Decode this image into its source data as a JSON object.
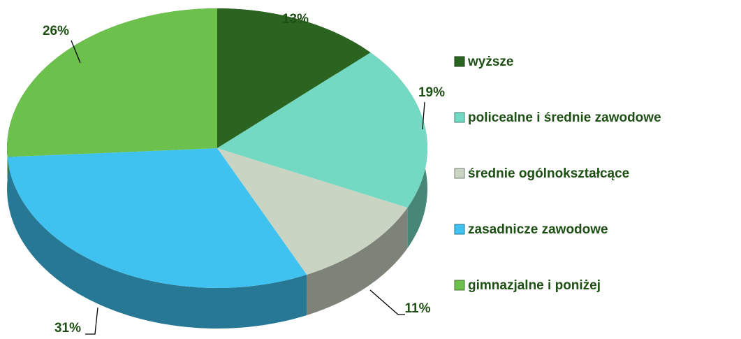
{
  "chart_data": {
    "type": "pie3d",
    "categories": [
      "wyższe",
      "policealne i średnie zawodowe",
      "średnie ogólnokształcące",
      "zasadnicze zawodowe",
      "gimnazjalne i poniżej"
    ],
    "values": [
      13,
      19,
      11,
      31,
      26
    ],
    "value_labels": [
      "13%",
      "19%",
      "11%",
      "31%",
      "26%"
    ],
    "colors": [
      "#2b6420",
      "#74d9c2",
      "#c9d4c2",
      "#3fc2ef",
      "#6cc04c"
    ],
    "legend": "right"
  }
}
